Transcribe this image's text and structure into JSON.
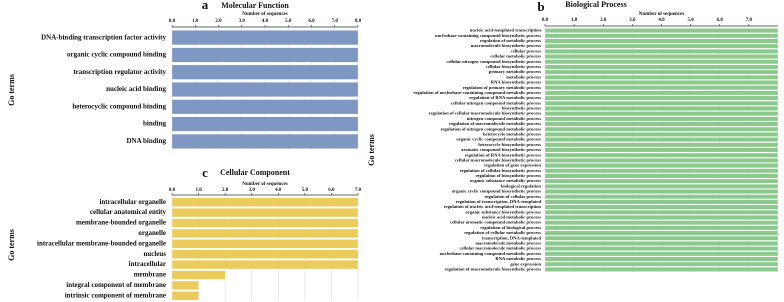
{
  "chart_data": [
    {
      "type": "bar",
      "orientation": "horizontal",
      "panel_label": "a",
      "title": "Molecular Function",
      "xlabel": "Number of sequences",
      "ylabel": "Go terms",
      "categories": [
        "DNA-binding transcription factor activity",
        "organic cyclic compound binding",
        "transcription regulator activity",
        "nucleic acid binding",
        "heterocyclic compound binding",
        "binding",
        "DNA binding"
      ],
      "values": [
        8,
        8,
        8,
        8,
        8,
        8,
        8
      ],
      "color": "#7f97c3",
      "grid": true,
      "xlim": [
        0,
        8
      ],
      "xticks": [
        {
          "value": 0,
          "label": "0.0"
        },
        {
          "value": 1,
          "label": "1.0"
        },
        {
          "value": 2,
          "label": "2.0"
        },
        {
          "value": 3,
          "label": "3.0"
        },
        {
          "value": 4,
          "label": "4.0"
        },
        {
          "value": 5,
          "label": "5.0"
        },
        {
          "value": 6,
          "label": "6.0"
        },
        {
          "value": 7,
          "label": "7.0"
        },
        {
          "value": 8,
          "label": "8.0"
        }
      ]
    },
    {
      "type": "bar",
      "orientation": "horizontal",
      "panel_label": "b",
      "title": "Biological Process",
      "xlabel": "Number of sequences",
      "ylabel": "Go terms",
      "categories": [
        "nucleic acid-templated transcription",
        "nucleobase-containing compound biosynthetic process",
        "regulation of metabolic process",
        "macromolecule biosynthetic process",
        "cellular process",
        "cellular metabolic process",
        "cellular nitrogen compound biosynthetic process",
        "cellular biosynthetic process",
        "primary metabolic process",
        "metabolic process",
        "RNA biosynthetic process",
        "regulation of primary metabolic process",
        "regulation of nucleobase-containing compound metabolic process",
        "regulation of RNA metabolic process",
        "cellular nitrogen compound metabolic process",
        "biosynthetic process",
        "regulation of cellular macromolecule biosynthetic process",
        "nitrogen compound metabolic process",
        "regulation of macromolecule metabolic process",
        "regulation of nitrogen compound metabolic process",
        "heterocycle metabolic process",
        "organic cyclic compound metabolic process",
        "heterocycle biosynthetic process",
        "aromatic compound biosynthetic process",
        "regulation of RNA biosynthetic process",
        "cellular macromolecule biosynthetic process",
        "regulation of gene expression",
        "regulation of cellular biosynthetic process",
        "regulation of biosynthetic process",
        "organic substance metabolic process",
        "biological regulation",
        "organic cyclic compound biosynthetic process",
        "regulation of cellular process",
        "regulation of transcription, DNA-templated",
        "regulation of nucleic acid-templated transcription",
        "organic substance biosynthetic process",
        "nucleic acid metabolic process",
        "cellular aromatic compound metabolic process",
        "regulation of biological process",
        "regulation of cellular metabolic process",
        "transcription, DNA-templated",
        "macromolecule metabolic process",
        "cellular macromolecule metabolic process",
        "nucleobase-containing compound metabolic process",
        "RNA metabolic process",
        "gene expression",
        "regulation of macromolecule biosynthetic process"
      ],
      "values": [
        8,
        8,
        8,
        8,
        8,
        8,
        8,
        8,
        8,
        8,
        8,
        8,
        8,
        8,
        8,
        8,
        8,
        8,
        8,
        8,
        8,
        8,
        8,
        8,
        8,
        8,
        8,
        8,
        8,
        8,
        8,
        8,
        8,
        8,
        8,
        8,
        8,
        8,
        8,
        8,
        8,
        8,
        8,
        8,
        8,
        8,
        8
      ],
      "color": "#8cc98c",
      "grid": true,
      "xlim": [
        0,
        8
      ],
      "xticks": [
        {
          "value": 0,
          "label": "0.0"
        },
        {
          "value": 1,
          "label": "1.0"
        },
        {
          "value": 2,
          "label": "2.0"
        },
        {
          "value": 3,
          "label": "3.0"
        },
        {
          "value": 4,
          "label": "4.0"
        },
        {
          "value": 5,
          "label": "5.0"
        },
        {
          "value": 6,
          "label": "6.0"
        },
        {
          "value": 7,
          "label": "7.0"
        }
      ]
    },
    {
      "type": "bar",
      "orientation": "horizontal",
      "panel_label": "c",
      "title": "Cellular Component",
      "xlabel": "Number of sequences",
      "ylabel": "Go terms",
      "categories": [
        "intracellular organelle",
        "cellular anatomical entity",
        "membrane-bounded organelle",
        "organelle",
        "intracellular membrane-bounded organelle",
        "nucleus",
        "intracellular",
        "membrane",
        "integral component of membrane",
        "intrinsic component of membrane"
      ],
      "values": [
        7,
        7,
        7,
        7,
        7,
        7,
        7,
        2,
        1,
        1
      ],
      "color": "#ebcb5c",
      "grid": true,
      "xlim": [
        0,
        7
      ],
      "xticks": [
        {
          "value": 0,
          "label": "0.0"
        },
        {
          "value": 1,
          "label": "1.0"
        },
        {
          "value": 2,
          "label": "2.0"
        },
        {
          "value": 3,
          "label": "3.0"
        },
        {
          "value": 4,
          "label": "4.0"
        },
        {
          "value": 5,
          "label": "5.0"
        },
        {
          "value": 6,
          "label": "6.0"
        },
        {
          "value": 7,
          "label": "7.0"
        }
      ]
    }
  ]
}
